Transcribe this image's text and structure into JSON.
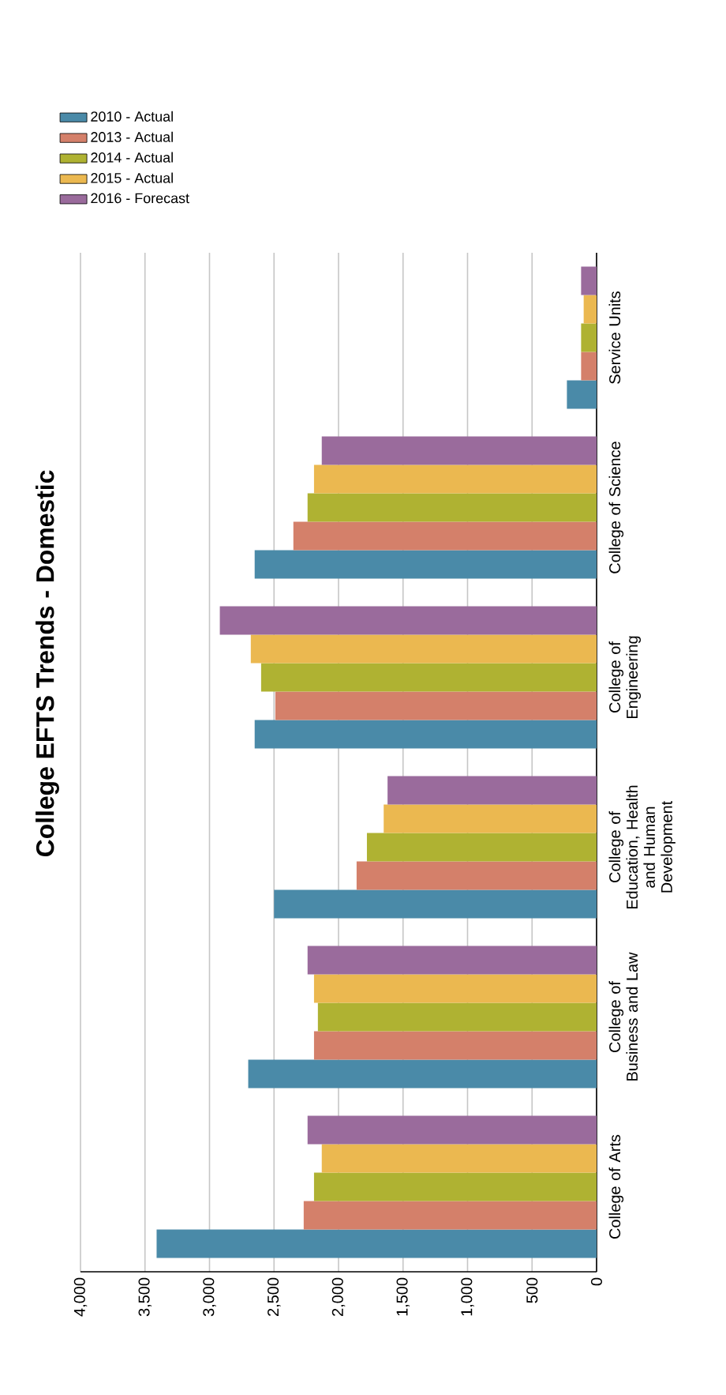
{
  "chart_data": {
    "type": "bar",
    "orientation": "horizontal",
    "title": "College EFTS Trends - Domestic",
    "categories": [
      "Service Units",
      "College of Science",
      "College of Engineering",
      "College of Education, Health and Human Development",
      "College of Business and Law",
      "College of Arts"
    ],
    "series": [
      {
        "name": "2010 - Actual",
        "color": "#4a8aa8",
        "values": [
          230,
          2650,
          2650,
          2500,
          2700,
          3410
        ]
      },
      {
        "name": "2013 - Actual",
        "color": "#d4806a",
        "values": [
          120,
          2350,
          2490,
          1860,
          2190,
          2270
        ]
      },
      {
        "name": "2014 - Actual",
        "color": "#afb232",
        "values": [
          120,
          2240,
          2600,
          1780,
          2160,
          2190
        ]
      },
      {
        "name": "2015 - Actual",
        "color": "#ebb850",
        "values": [
          100,
          2190,
          2680,
          1650,
          2190,
          2130
        ]
      },
      {
        "name": "2016 - Forecast",
        "color": "#9a6b9c",
        "values": [
          120,
          2130,
          2920,
          1620,
          2240,
          2240
        ]
      }
    ],
    "xlim": [
      4000,
      0
    ],
    "xticks": [
      {
        "value": 4000,
        "label": "4,000"
      },
      {
        "value": 3500,
        "label": "3,500"
      },
      {
        "value": 3000,
        "label": "3,000"
      },
      {
        "value": 2500,
        "label": "2,500"
      },
      {
        "value": 2000,
        "label": "2,000"
      },
      {
        "value": 1500,
        "label": "1,500"
      },
      {
        "value": 1000,
        "label": "1,000"
      },
      {
        "value": 500,
        "label": "500"
      },
      {
        "value": 0,
        "label": "0"
      }
    ],
    "grid": "x",
    "legend": "top left"
  }
}
